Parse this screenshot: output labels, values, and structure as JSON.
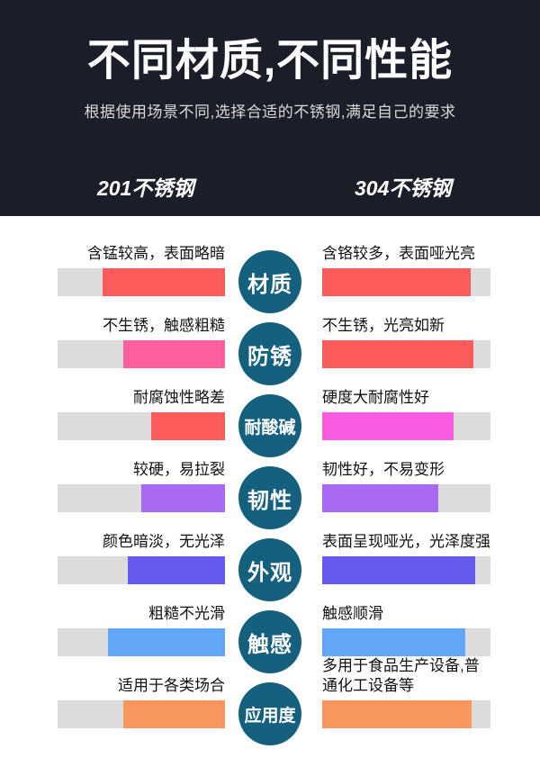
{
  "header": {
    "title": "不同材质,不同性能",
    "subtitle": "根据使用场景不同,选择合适的不锈钢,满足自己的要求",
    "left_column": "201不锈钢",
    "right_column": "304不锈钢",
    "bg_color": "#1b1e28"
  },
  "colors": {
    "track": "#dcdcdc",
    "badge": "#15607f",
    "red": "#fc5b5b",
    "pink": "#fd5f9f",
    "magenta": "#f95ce0",
    "purple": "#a968f2",
    "blue_violet": "#6659ef",
    "sky_blue": "#63a8f8",
    "orange": "#f8965e"
  },
  "rows": [
    {
      "badge": "材质",
      "left": {
        "label": "含锰较高，表面略暗",
        "fill_percent": 73,
        "color": "#fc5b5b"
      },
      "right": {
        "label": "含铬较多，表面哑光亮",
        "fill_percent": 88,
        "color": "#fc5b5b"
      }
    },
    {
      "badge": "防锈",
      "left": {
        "label": "不生锈，触感粗糙",
        "fill_percent": 61,
        "color": "#fd5f9f"
      },
      "right": {
        "label": "不生锈，光亮如新",
        "fill_percent": 90,
        "color": "#fc5b5b"
      }
    },
    {
      "badge": "耐酸碱",
      "left": {
        "label": "耐腐蚀性略差",
        "fill_percent": 44,
        "color": "#fc5b5b"
      },
      "right": {
        "label": "硬度大耐腐性好",
        "fill_percent": 78,
        "color": "#f95ce0"
      }
    },
    {
      "badge": "韧性",
      "left": {
        "label": "较硬，易拉裂",
        "fill_percent": 50,
        "color": "#a968f2"
      },
      "right": {
        "label": "韧性好，不易变形",
        "fill_percent": 69,
        "color": "#a968f2"
      }
    },
    {
      "badge": "外观",
      "left": {
        "label": "颜色暗淡，无光泽",
        "fill_percent": 58,
        "color": "#6659ef"
      },
      "right": {
        "label": "表面呈现哑光，光泽度强",
        "fill_percent": 91,
        "color": "#6659ef"
      }
    },
    {
      "badge": "触感",
      "left": {
        "label": "粗糙不光滑",
        "fill_percent": 70,
        "color": "#63a8f8"
      },
      "right": {
        "label": "触感顺滑",
        "fill_percent": 85,
        "color": "#63a8f8"
      }
    },
    {
      "badge": "应用度",
      "left": {
        "label": "适用于各类场合",
        "fill_percent": 61,
        "color": "#f8965e"
      },
      "right": {
        "label": "多用于食品生产设备,普通化工设备等",
        "fill_percent": 89,
        "color": "#f8965e"
      }
    }
  ],
  "chart_data": {
    "type": "bar",
    "orientation": "horizontal_paired",
    "title": "不同材质,不同性能",
    "subtitle": "根据使用场景不同,选择合适的不锈钢,满足自己的要求",
    "categories": [
      "材质",
      "防锈",
      "耐酸碱",
      "韧性",
      "外观",
      "触感",
      "应用度"
    ],
    "series": [
      {
        "name": "201不锈钢",
        "values": [
          73,
          61,
          44,
          50,
          58,
          70,
          61
        ],
        "annotations": [
          "含锰较高，表面略暗",
          "不生锈，触感粗糙",
          "耐腐蚀性略差",
          "较硬，易拉裂",
          "颜色暗淡，无光泽",
          "粗糙不光滑",
          "适用于各类场合"
        ]
      },
      {
        "name": "304不锈钢",
        "values": [
          88,
          90,
          78,
          69,
          91,
          85,
          89
        ],
        "annotations": [
          "含铬较多，表面哑光亮",
          "不生锈，光亮如新",
          "硬度大耐腐性好",
          "韧性好，不易变形",
          "表面呈现哑光，光泽度强",
          "触感顺滑",
          "多用于食品生产设备,普通化工设备等"
        ]
      }
    ],
    "ylim": [
      0,
      100
    ],
    "legend_position": "header",
    "grid": false
  }
}
